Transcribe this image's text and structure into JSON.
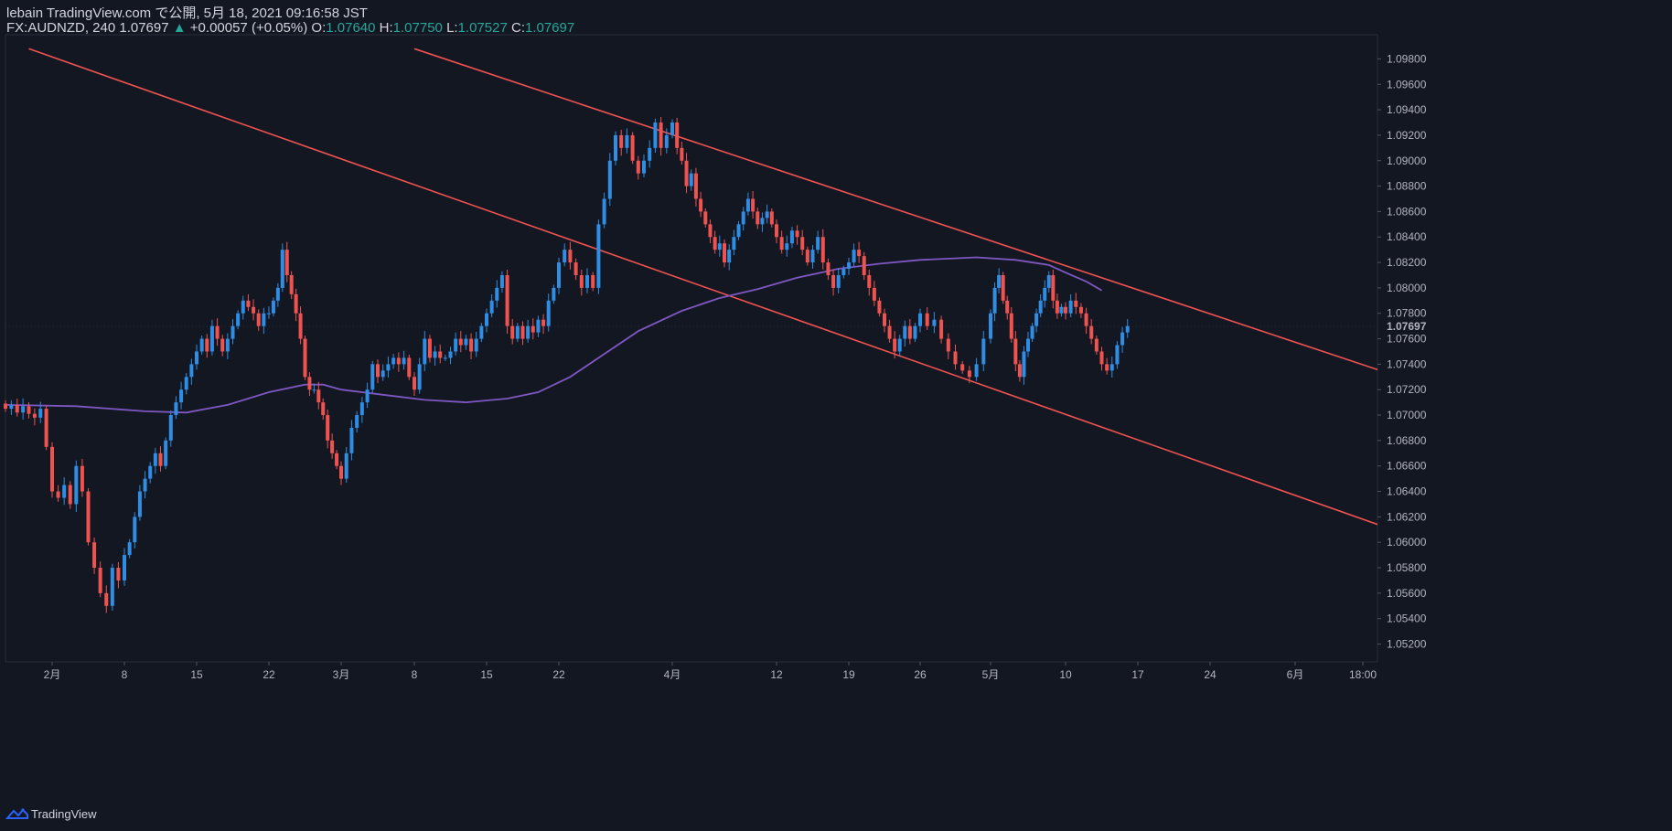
{
  "header": {
    "line1": "lebain TradingView.com で公開, 5月 18, 2021 09:16:58 JST",
    "symbol": "FX:AUDNZD, 240 1.07697",
    "change": "+0.00057 (+0.05%)",
    "o_label": "O:",
    "o_value": "1.07640",
    "h_label": "H:",
    "h_value": "1.07750",
    "l_label": "L:",
    "l_value": "1.07527",
    "c_label": "C:",
    "c_value": "1.07697"
  },
  "footer": {
    "brand": "TradingView"
  },
  "colors": {
    "background": "#131722",
    "up": "#2f8de4",
    "down": "#ef5350",
    "trendline": "#ef5350",
    "moving_average": "#7e57c2",
    "axis_text": "#b2b5be",
    "last_price_bg": "#131722"
  },
  "chart_data": {
    "type": "candlestick",
    "symbol": "FX:AUDNZD",
    "interval": "240",
    "y_ticks": [
      1.052,
      1.054,
      1.056,
      1.058,
      1.06,
      1.062,
      1.064,
      1.066,
      1.068,
      1.07,
      1.072,
      1.074,
      1.076,
      1.078,
      1.08,
      1.082,
      1.084,
      1.086,
      1.088,
      1.09,
      1.092,
      1.094,
      1.096,
      1.098
    ],
    "y_tick_labels": [
      "1.05200",
      "1.05400",
      "1.05600",
      "1.05800",
      "1.06000",
      "1.06200",
      "1.06400",
      "1.06600",
      "1.06800",
      "1.07000",
      "1.07200",
      "1.07400",
      "1.07600",
      "1.07800",
      "1.08000",
      "1.08200",
      "1.08400",
      "1.08600",
      "1.08800",
      "1.09000",
      "1.09200",
      "1.09400",
      "1.09600",
      "1.09800"
    ],
    "ylim": [
      1.0506,
      1.0999
    ],
    "last_price": "1.07697",
    "x_ticks": [
      {
        "label": "2月",
        "day": 0
      },
      {
        "label": "8",
        "day": 6
      },
      {
        "label": "15",
        "day": 13
      },
      {
        "label": "22",
        "day": 20
      },
      {
        "label": "3月",
        "day": 28
      },
      {
        "label": "8",
        "day": 35
      },
      {
        "label": "15",
        "day": 42
      },
      {
        "label": "22",
        "day": 49
      },
      {
        "label": "4月",
        "day": 59
      },
      {
        "label": "12",
        "day": 70
      },
      {
        "label": "19",
        "day": 77
      },
      {
        "label": "26",
        "day": 84
      },
      {
        "label": "5月",
        "day": 89
      },
      {
        "label": "10",
        "day": 98
      },
      {
        "label": "17",
        "day": 105
      },
      {
        "label": "24",
        "day": 112
      },
      {
        "label": "6月",
        "day": 120
      },
      {
        "label": "18:00",
        "day": 126.7
      }
    ],
    "xlim_days": [
      -4,
      130
    ],
    "closes": [
      [
        -4,
        1.0705
      ],
      [
        -3.5,
        1.0708
      ],
      [
        -3,
        1.0702
      ],
      [
        -2.5,
        1.0707
      ],
      [
        -2,
        1.0701
      ],
      [
        -1.5,
        1.0698
      ],
      [
        -1,
        1.0705
      ],
      [
        -0.5,
        1.0675
      ],
      [
        0,
        1.064
      ],
      [
        0.5,
        1.0635
      ],
      [
        1,
        1.0645
      ],
      [
        1.5,
        1.063
      ],
      [
        2,
        1.066
      ],
      [
        2.5,
        1.064
      ],
      [
        3,
        1.06
      ],
      [
        3.5,
        1.058
      ],
      [
        4,
        1.056
      ],
      [
        4.5,
        1.055
      ],
      [
        5,
        1.058
      ],
      [
        5.5,
        1.057
      ],
      [
        6,
        1.059
      ],
      [
        6.5,
        1.06
      ],
      [
        7,
        1.062
      ],
      [
        7.5,
        1.064
      ],
      [
        8,
        1.065
      ],
      [
        8.5,
        1.066
      ],
      [
        9,
        1.067
      ],
      [
        9.5,
        1.066
      ],
      [
        10,
        1.068
      ],
      [
        10.5,
        1.07
      ],
      [
        11,
        1.071
      ],
      [
        11.5,
        1.072
      ],
      [
        12,
        1.073
      ],
      [
        12.5,
        1.074
      ],
      [
        13,
        1.075
      ],
      [
        13.5,
        1.076
      ],
      [
        14,
        1.075
      ],
      [
        14.5,
        1.077
      ],
      [
        15,
        1.076
      ],
      [
        15.5,
        1.075
      ],
      [
        16,
        1.076
      ],
      [
        16.5,
        1.077
      ],
      [
        17,
        1.078
      ],
      [
        17.5,
        1.079
      ],
      [
        18,
        1.0785
      ],
      [
        18.5,
        1.078
      ],
      [
        19,
        1.077
      ],
      [
        19.5,
        1.078
      ],
      [
        20,
        1.078
      ],
      [
        20.5,
        1.079
      ],
      [
        21,
        1.08
      ],
      [
        21.5,
        1.083
      ],
      [
        22,
        1.081
      ],
      [
        22.5,
        1.0795
      ],
      [
        23,
        1.078
      ],
      [
        23.5,
        1.076
      ],
      [
        24,
        1.073
      ],
      [
        24.5,
        1.072
      ],
      [
        25,
        1.072
      ],
      [
        25.5,
        1.071
      ],
      [
        26,
        1.07
      ],
      [
        26.5,
        1.068
      ],
      [
        27,
        1.067
      ],
      [
        27.5,
        1.066
      ],
      [
        28,
        1.065
      ],
      [
        28.5,
        1.067
      ],
      [
        29,
        1.069
      ],
      [
        29.5,
        1.07
      ],
      [
        30,
        1.071
      ],
      [
        30.5,
        1.072
      ],
      [
        31,
        1.074
      ],
      [
        31.5,
        1.073
      ],
      [
        32,
        1.0735
      ],
      [
        32.5,
        1.074
      ],
      [
        33,
        1.0745
      ],
      [
        33.5,
        1.074
      ],
      [
        34,
        1.0745
      ],
      [
        34.5,
        1.073
      ],
      [
        35,
        1.072
      ],
      [
        35.5,
        1.074
      ],
      [
        36,
        1.076
      ],
      [
        36.5,
        1.0745
      ],
      [
        37,
        1.075
      ],
      [
        37.5,
        1.0745
      ],
      [
        38,
        1.0745
      ],
      [
        38.5,
        1.075
      ],
      [
        39,
        1.076
      ],
      [
        39.5,
        1.0755
      ],
      [
        40,
        1.076
      ],
      [
        40.5,
        1.075
      ],
      [
        41,
        1.076
      ],
      [
        41.5,
        1.077
      ],
      [
        42,
        1.078
      ],
      [
        42.5,
        1.079
      ],
      [
        43,
        1.08
      ],
      [
        43.5,
        1.081
      ],
      [
        44,
        1.077
      ],
      [
        44.5,
        1.076
      ],
      [
        45,
        1.077
      ],
      [
        45.5,
        1.076
      ],
      [
        46,
        1.077
      ],
      [
        46.5,
        1.0765
      ],
      [
        47,
        1.0775
      ],
      [
        47.5,
        1.077
      ],
      [
        48,
        1.079
      ],
      [
        48.5,
        1.08
      ],
      [
        49,
        1.082
      ],
      [
        49.5,
        1.083
      ],
      [
        50,
        1.082
      ],
      [
        50.5,
        1.081
      ],
      [
        51,
        1.08
      ],
      [
        51.5,
        1.081
      ],
      [
        52,
        1.08
      ],
      [
        52.5,
        1.085
      ],
      [
        53,
        1.087
      ],
      [
        53.5,
        1.09
      ],
      [
        54,
        1.092
      ],
      [
        54.5,
        1.091
      ],
      [
        55,
        1.092
      ],
      [
        55.5,
        1.09
      ],
      [
        56,
        1.089
      ],
      [
        56.5,
        1.09
      ],
      [
        57,
        1.091
      ],
      [
        57.5,
        1.093
      ],
      [
        58,
        1.091
      ],
      [
        58.5,
        1.092
      ],
      [
        59,
        1.093
      ],
      [
        59.5,
        1.091
      ],
      [
        60,
        1.09
      ],
      [
        60.5,
        1.088
      ],
      [
        61,
        1.089
      ],
      [
        61.5,
        1.087
      ],
      [
        62,
        1.086
      ],
      [
        62.5,
        1.085
      ],
      [
        63,
        1.084
      ],
      [
        63.5,
        1.083
      ],
      [
        64,
        1.0835
      ],
      [
        64.5,
        1.082
      ],
      [
        65,
        1.083
      ],
      [
        65.5,
        1.084
      ],
      [
        66,
        1.085
      ],
      [
        66.5,
        1.086
      ],
      [
        67,
        1.087
      ],
      [
        67.5,
        1.086
      ],
      [
        68,
        1.085
      ],
      [
        68.5,
        1.0855
      ],
      [
        69,
        1.086
      ],
      [
        69.5,
        1.085
      ],
      [
        70,
        1.084
      ],
      [
        70.5,
        1.083
      ],
      [
        71,
        1.0835
      ],
      [
        71.5,
        1.0845
      ],
      [
        72,
        1.084
      ],
      [
        72.5,
        1.083
      ],
      [
        73,
        1.082
      ],
      [
        73.5,
        1.083
      ],
      [
        74,
        1.084
      ],
      [
        74.5,
        1.082
      ],
      [
        75,
        1.081
      ],
      [
        75.5,
        1.08
      ],
      [
        76,
        1.081
      ],
      [
        76.5,
        1.0815
      ],
      [
        77,
        1.082
      ],
      [
        77.5,
        1.083
      ],
      [
        78,
        1.0825
      ],
      [
        78.5,
        1.081
      ],
      [
        79,
        1.08
      ],
      [
        79.5,
        1.079
      ],
      [
        80,
        1.078
      ],
      [
        80.5,
        1.077
      ],
      [
        81,
        1.076
      ],
      [
        81.5,
        1.075
      ],
      [
        82,
        1.076
      ],
      [
        82.5,
        1.077
      ],
      [
        83,
        1.076
      ],
      [
        83.5,
        1.077
      ],
      [
        84,
        1.078
      ],
      [
        84.5,
        1.077
      ],
      [
        85,
        1.0775
      ],
      [
        85.5,
        1.076
      ],
      [
        86,
        1.075
      ],
      [
        86.5,
        1.074
      ],
      [
        87,
        1.0735
      ],
      [
        87.5,
        1.073
      ],
      [
        88,
        1.074
      ],
      [
        88.5,
        1.076
      ],
      [
        89,
        1.078
      ],
      [
        89.5,
        1.08
      ],
      [
        90,
        1.081
      ],
      [
        90.5,
        1.079
      ],
      [
        91,
        1.078
      ],
      [
        91.5,
        1.076
      ],
      [
        92,
        1.074
      ],
      [
        92.5,
        1.073
      ],
      [
        93,
        1.075
      ],
      [
        93.5,
        1.076
      ],
      [
        94,
        1.077
      ],
      [
        94.5,
        1.078
      ],
      [
        95,
        1.079
      ],
      [
        95.5,
        1.08
      ],
      [
        96,
        1.081
      ],
      [
        96.5,
        1.079
      ],
      [
        97,
        1.078
      ],
      [
        97.5,
        1.0785
      ],
      [
        98,
        1.078
      ],
      [
        98.5,
        1.079
      ],
      [
        99,
        1.0785
      ],
      [
        99.5,
        1.078
      ],
      [
        100,
        1.077
      ],
      [
        100.5,
        1.076
      ],
      [
        101,
        1.075
      ],
      [
        101.5,
        1.074
      ],
      [
        102,
        1.0735
      ],
      [
        102.5,
        1.074
      ],
      [
        103,
        1.0755
      ],
      [
        103.5,
        1.0765
      ],
      [
        104,
        1.077
      ]
    ],
    "ma_points": [
      [
        -4,
        1.0708
      ],
      [
        2,
        1.0707
      ],
      [
        8,
        1.0703
      ],
      [
        12,
        1.0702
      ],
      [
        16,
        1.0708
      ],
      [
        20,
        1.0718
      ],
      [
        24,
        1.0724
      ],
      [
        26,
        1.0724
      ],
      [
        28,
        1.072
      ],
      [
        32,
        1.0716
      ],
      [
        36,
        1.0712
      ],
      [
        40,
        1.071
      ],
      [
        44,
        1.0713
      ],
      [
        47,
        1.0718
      ],
      [
        50,
        1.073
      ],
      [
        53,
        1.0748
      ],
      [
        56,
        1.0766
      ],
      [
        60,
        1.0782
      ],
      [
        64,
        1.0792
      ],
      [
        68,
        1.0799
      ],
      [
        72,
        1.0808
      ],
      [
        76,
        1.0815
      ],
      [
        80,
        1.0819
      ],
      [
        84,
        1.0822
      ],
      [
        88,
        1.0824
      ],
      [
        92,
        1.0822
      ],
      [
        96,
        1.0818
      ],
      [
        98,
        1.0812
      ],
      [
        100,
        1.0805
      ],
      [
        101.5,
        1.0798
      ]
    ],
    "trendlines": [
      {
        "from": [
          -2,
          1.0988
        ],
        "to": [
          130,
          1.0608
        ]
      },
      {
        "from": [
          35,
          1.0988
        ],
        "to": [
          130,
          1.073
        ]
      }
    ]
  }
}
